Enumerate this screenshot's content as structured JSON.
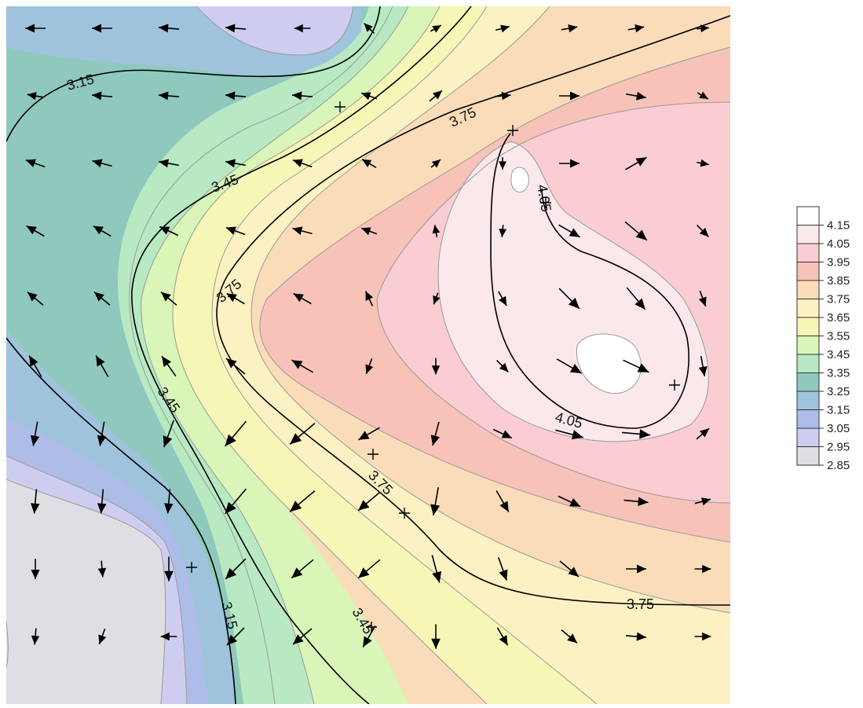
{
  "chart_data": {
    "type": "heatmap",
    "subtype": "filled-contour-with-vector-field",
    "title": "",
    "xlabel": "",
    "ylabel": "",
    "grid": false,
    "legend": {
      "placement": "right",
      "levels": [
        "4.15",
        "4.05",
        "3.95",
        "3.85",
        "3.75",
        "3.65",
        "3.55",
        "3.45",
        "3.35",
        "3.25",
        "3.15",
        "3.05",
        "2.95",
        "2.85"
      ],
      "colors": [
        "#ffffff",
        "#fbe8ea",
        "#f9cdd2",
        "#f7c2b8",
        "#fbdcb8",
        "#fbf1c2",
        "#f6f7b7",
        "#d9f5b7",
        "#b8e9c2",
        "#8fc9bd",
        "#9fc3dc",
        "#aebce8",
        "#cfcdef",
        "#dedee3"
      ]
    },
    "major_contour_labels": [
      "3.15",
      "3.45",
      "3.75",
      "3.75",
      "3.45",
      "3.75",
      "4.05",
      "4.05",
      "3.75",
      "3.45",
      "3.15"
    ],
    "vector_field": {
      "description_units": "direction angle in degrees (0 = east, 90 = north), relative magnitude 0-1",
      "grid_cols": 11,
      "grid_rows": 10,
      "angles": [
        [
          180,
          180,
          175,
          175,
          180,
          135,
          30,
          15,
          10,
          10,
          5
        ],
        [
          170,
          175,
          175,
          175,
          175,
          160,
          40,
          5,
          0,
          -10,
          -30
        ],
        [
          160,
          165,
          170,
          170,
          160,
          150,
          40,
          -90,
          0,
          30,
          -10
        ],
        [
          150,
          150,
          155,
          160,
          165,
          160,
          100,
          -95,
          -30,
          -40,
          -45
        ],
        [
          140,
          140,
          140,
          150,
          150,
          115,
          -110,
          -60,
          -45,
          -50,
          -70
        ],
        [
          120,
          120,
          125,
          140,
          150,
          -110,
          -90,
          -45,
          -30,
          -25,
          -80
        ],
        [
          -100,
          -100,
          -110,
          -130,
          -140,
          -150,
          -105,
          -25,
          -15,
          -5,
          40
        ],
        [
          -95,
          -95,
          -95,
          -130,
          -140,
          -140,
          -100,
          -60,
          -25,
          -5,
          15
        ],
        [
          -90,
          -85,
          -90,
          -135,
          -140,
          -140,
          -75,
          -70,
          -40,
          0,
          0
        ],
        [
          -95,
          -110,
          180,
          -135,
          -140,
          -120,
          -90,
          -60,
          -40,
          -5,
          0
        ]
      ],
      "magnitudes": [
        [
          0.5,
          0.5,
          0.5,
          0.5,
          0.4,
          0.35,
          0.3,
          0.35,
          0.4,
          0.4,
          0.3
        ],
        [
          0.4,
          0.5,
          0.5,
          0.5,
          0.5,
          0.4,
          0.4,
          0.4,
          0.5,
          0.5,
          0.3
        ],
        [
          0.5,
          0.5,
          0.5,
          0.5,
          0.5,
          0.4,
          0.3,
          0.3,
          0.5,
          0.6,
          0.3
        ],
        [
          0.5,
          0.5,
          0.5,
          0.5,
          0.5,
          0.4,
          0.3,
          0.3,
          0.6,
          0.7,
          0.4
        ],
        [
          0.5,
          0.5,
          0.5,
          0.5,
          0.5,
          0.4,
          0.3,
          0.4,
          0.7,
          0.7,
          0.4
        ],
        [
          0.6,
          0.6,
          0.6,
          0.6,
          0.6,
          0.4,
          0.4,
          0.4,
          0.7,
          0.7,
          0.5
        ],
        [
          0.6,
          0.6,
          0.7,
          0.8,
          0.8,
          0.6,
          0.6,
          0.5,
          0.7,
          0.7,
          0.4
        ],
        [
          0.6,
          0.6,
          0.6,
          0.8,
          0.8,
          0.7,
          0.7,
          0.6,
          0.6,
          0.6,
          0.4
        ],
        [
          0.5,
          0.4,
          0.6,
          0.7,
          0.7,
          0.7,
          0.7,
          0.6,
          0.6,
          0.5,
          0.4
        ],
        [
          0.4,
          0.4,
          0.4,
          0.6,
          0.6,
          0.6,
          0.6,
          0.5,
          0.5,
          0.5,
          0.4
        ]
      ]
    }
  }
}
